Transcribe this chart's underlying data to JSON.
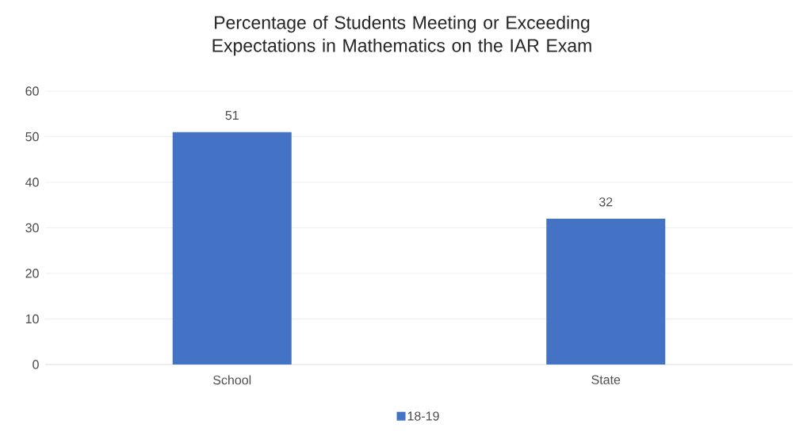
{
  "chart_data": {
    "type": "bar",
    "title": "Percentage of Students Meeting or Exceeding Expectations in Mathematics on the IAR Exam",
    "categories": [
      "School",
      "State"
    ],
    "series": [
      {
        "name": "18-19",
        "color": "#4472c4",
        "values": [
          51,
          32
        ]
      }
    ],
    "ylim": [
      0,
      60
    ],
    "yticks": [
      0,
      10,
      20,
      30,
      40,
      50,
      60
    ],
    "grid": "y",
    "legend": "bottom",
    "data_labels": true
  }
}
